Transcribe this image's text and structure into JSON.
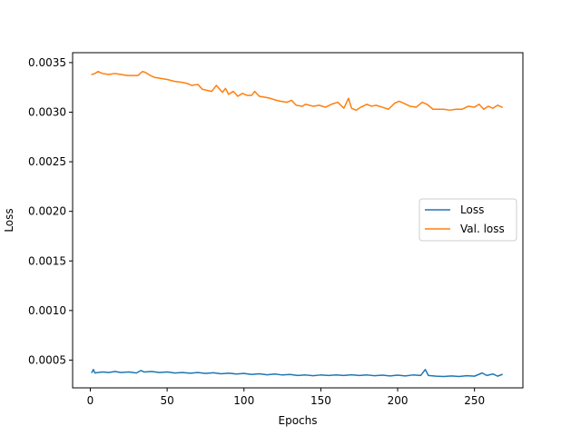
{
  "chart_data": {
    "type": "line",
    "title": "",
    "xlabel": "Epochs",
    "ylabel": "Loss",
    "xlim": [
      -11.5,
      281.5
    ],
    "ylim": [
      0.00022,
      0.0036
    ],
    "xticks": [
      0,
      50,
      100,
      150,
      200,
      250
    ],
    "yticks": [
      0.0005,
      0.001,
      0.0015,
      0.002,
      0.0025,
      0.003,
      0.0035
    ],
    "xtick_labels": [
      "0",
      "50",
      "100",
      "150",
      "200",
      "250"
    ],
    "ytick_labels": [
      "0.0005",
      "0.0010",
      "0.0015",
      "0.0020",
      "0.0025",
      "0.0030",
      "0.0035"
    ],
    "grid": false,
    "legend_position": "center-right",
    "series": [
      {
        "name": "Loss",
        "color": "#1f77b4",
        "x": [
          1,
          2,
          3,
          5,
          8,
          12,
          16,
          20,
          25,
          30,
          33,
          35,
          40,
          45,
          50,
          55,
          60,
          65,
          70,
          75,
          80,
          85,
          90,
          95,
          100,
          105,
          110,
          115,
          120,
          125,
          130,
          135,
          140,
          145,
          150,
          155,
          160,
          165,
          170,
          175,
          180,
          185,
          190,
          195,
          200,
          205,
          210,
          215,
          218,
          220,
          225,
          230,
          235,
          240,
          245,
          250,
          255,
          258,
          262,
          265,
          268
        ],
        "values": [
          0.000375,
          0.000405,
          0.00037,
          0.000375,
          0.00038,
          0.000375,
          0.000385,
          0.000375,
          0.00038,
          0.00037,
          0.000395,
          0.00038,
          0.000385,
          0.000375,
          0.00038,
          0.00037,
          0.000375,
          0.000368,
          0.000375,
          0.000365,
          0.000372,
          0.000362,
          0.000368,
          0.00036,
          0.000365,
          0.000355,
          0.000362,
          0.000352,
          0.00036,
          0.00035,
          0.000355,
          0.000345,
          0.00035,
          0.000342,
          0.00035,
          0.000345,
          0.00035,
          0.000345,
          0.000352,
          0.000345,
          0.00035,
          0.000342,
          0.000348,
          0.00034,
          0.000348,
          0.00034,
          0.00035,
          0.000345,
          0.000405,
          0.000345,
          0.000338,
          0.000335,
          0.00034,
          0.000335,
          0.000342,
          0.000338,
          0.00037,
          0.000345,
          0.00036,
          0.000338,
          0.000355
        ]
      },
      {
        "name": "Val. loss",
        "color": "#ff7f0e",
        "x": [
          1,
          3,
          5,
          8,
          12,
          16,
          20,
          24,
          28,
          31,
          34,
          36,
          39,
          42,
          46,
          50,
          55,
          60,
          63,
          66,
          70,
          73,
          76,
          79,
          82,
          86,
          88,
          90,
          93,
          96,
          99,
          102,
          105,
          107,
          110,
          114,
          117,
          121,
          124,
          128,
          131,
          134,
          138,
          140,
          145,
          149,
          153,
          157,
          161,
          165,
          168,
          170,
          173,
          176,
          180,
          183,
          186,
          190,
          194,
          198,
          201,
          204,
          208,
          212,
          216,
          219,
          223,
          226,
          230,
          234,
          238,
          242,
          246,
          250,
          253,
          256,
          259,
          262,
          265,
          268
        ],
        "values": [
          0.00338,
          0.00339,
          0.00341,
          0.00339,
          0.00338,
          0.00339,
          0.00338,
          0.00337,
          0.00337,
          0.00337,
          0.00341,
          0.0034,
          0.00337,
          0.00335,
          0.00334,
          0.00333,
          0.00331,
          0.0033,
          0.00329,
          0.00327,
          0.00328,
          0.00323,
          0.00322,
          0.00321,
          0.00327,
          0.0032,
          0.00324,
          0.00318,
          0.00321,
          0.00316,
          0.00319,
          0.00317,
          0.00317,
          0.00321,
          0.00316,
          0.00315,
          0.00314,
          0.00312,
          0.00311,
          0.0031,
          0.00312,
          0.00307,
          0.00306,
          0.00308,
          0.00306,
          0.00307,
          0.00305,
          0.00308,
          0.0031,
          0.00304,
          0.00314,
          0.00304,
          0.00302,
          0.00305,
          0.00308,
          0.00306,
          0.00307,
          0.00305,
          0.00303,
          0.00309,
          0.00311,
          0.00309,
          0.00306,
          0.00305,
          0.0031,
          0.00308,
          0.00303,
          0.00303,
          0.00303,
          0.00302,
          0.00303,
          0.00303,
          0.00306,
          0.00305,
          0.00308,
          0.00303,
          0.00306,
          0.00304,
          0.00307,
          0.00305
        ]
      }
    ]
  }
}
